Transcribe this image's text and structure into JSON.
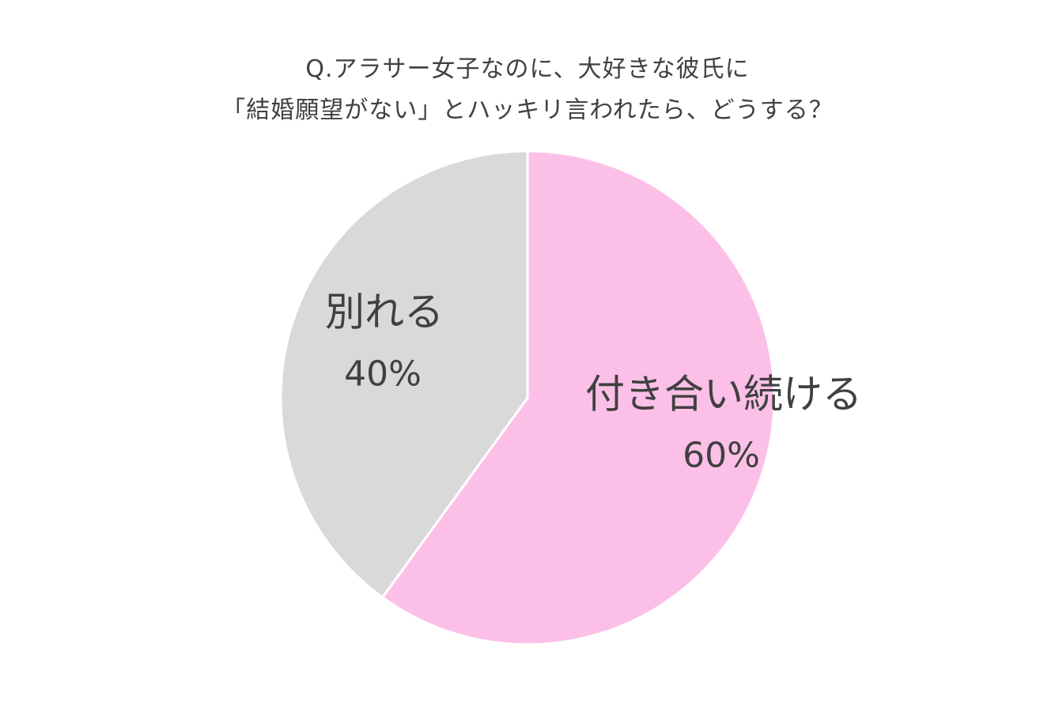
{
  "chart_data": {
    "type": "pie",
    "title_lines": [
      "Q.アラサー女子なのに、大好きな彼氏に",
      "「結婚願望がない」とハッキリ言われたら、どうする？"
    ],
    "slices": [
      {
        "label": "付き合い続ける",
        "value": 60,
        "value_label": "60%",
        "color": "#FCC0E8"
      },
      {
        "label": "別れる",
        "value": 40,
        "value_label": "40%",
        "color": "#D9D9D9"
      }
    ],
    "start_angle": "12 o'clock",
    "direction": "clockwise",
    "legend": "none",
    "labels_inside": true
  }
}
